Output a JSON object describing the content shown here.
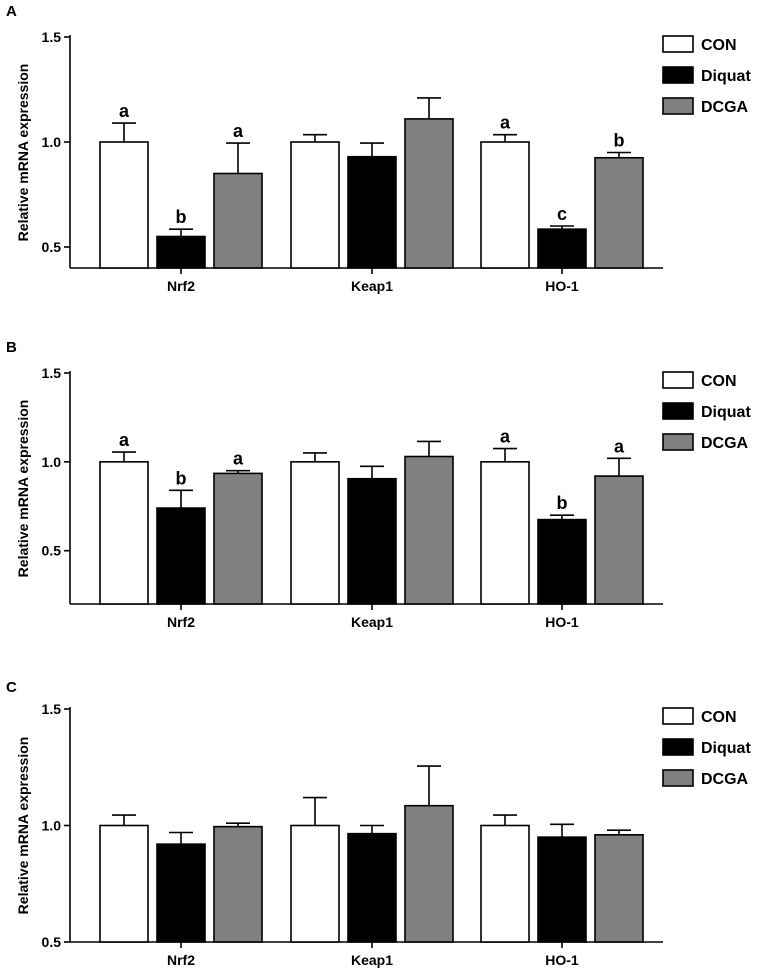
{
  "chart_data": [
    {
      "type": "bar",
      "panel_label": "A",
      "ylabel": "Relative mRNA expression",
      "xlabel": "",
      "ylim": [
        0.4,
        1.5
      ],
      "yticks": [
        0.5,
        1.0,
        1.5
      ],
      "ytick_labels": [
        "0.5",
        "1.0",
        "1.5"
      ],
      "categories": [
        "Nrf2",
        "Keap1",
        "HO-1"
      ],
      "legend": {
        "position": "top-right",
        "entries": [
          "CON",
          "Diquat",
          "DCGA"
        ]
      },
      "series": [
        {
          "name": "CON",
          "color": "#ffffff",
          "values": [
            1.0,
            1.0,
            1.0
          ],
          "errors": [
            0.09,
            0.035,
            0.035
          ],
          "labels": [
            "a",
            "",
            "a"
          ]
        },
        {
          "name": "Diquat",
          "color": "#000000",
          "values": [
            0.55,
            0.93,
            0.585
          ],
          "errors": [
            0.035,
            0.065,
            0.015
          ],
          "labels": [
            "b",
            "",
            "c"
          ]
        },
        {
          "name": "DCGA",
          "color": "#808080",
          "values": [
            0.85,
            1.11,
            0.925
          ],
          "errors": [
            0.145,
            0.1,
            0.025
          ],
          "labels": [
            "a",
            "",
            "b"
          ]
        }
      ]
    },
    {
      "type": "bar",
      "panel_label": "B",
      "ylabel": "Relative mRNA expression",
      "xlabel": "",
      "ylim": [
        0.2,
        1.5
      ],
      "yticks": [
        0.5,
        1.0,
        1.5
      ],
      "ytick_labels": [
        "0.5",
        "1.0",
        "1.5"
      ],
      "categories": [
        "Nrf2",
        "Keap1",
        "HO-1"
      ],
      "legend": {
        "position": "top-right",
        "entries": [
          "CON",
          "Diquat",
          "DCGA"
        ]
      },
      "series": [
        {
          "name": "CON",
          "color": "#ffffff",
          "values": [
            1.0,
            1.0,
            1.0
          ],
          "errors": [
            0.055,
            0.05,
            0.075
          ],
          "labels": [
            "a",
            "",
            "a"
          ]
        },
        {
          "name": "Diquat",
          "color": "#000000",
          "values": [
            0.74,
            0.905,
            0.675
          ],
          "errors": [
            0.1,
            0.07,
            0.025
          ],
          "labels": [
            "b",
            "",
            "b"
          ]
        },
        {
          "name": "DCGA",
          "color": "#808080",
          "values": [
            0.935,
            1.03,
            0.92
          ],
          "errors": [
            0.015,
            0.085,
            0.1
          ],
          "labels": [
            "a",
            "",
            "a"
          ]
        }
      ]
    },
    {
      "type": "bar",
      "panel_label": "C",
      "ylabel": "Relative mRNA expression",
      "xlabel": "",
      "ylim": [
        0.5,
        1.5
      ],
      "yticks": [
        0.5,
        1.0,
        1.5
      ],
      "ytick_labels": [
        "0.5",
        "1.0",
        "1.5"
      ],
      "categories": [
        "Nrf2",
        "Keap1",
        "HO-1"
      ],
      "legend": {
        "position": "top-right",
        "entries": [
          "CON",
          "Diquat",
          "DCGA"
        ]
      },
      "series": [
        {
          "name": "CON",
          "color": "#ffffff",
          "values": [
            1.0,
            1.0,
            1.0
          ],
          "errors": [
            0.045,
            0.12,
            0.045
          ],
          "labels": [
            "",
            "",
            ""
          ]
        },
        {
          "name": "Diquat",
          "color": "#000000",
          "values": [
            0.92,
            0.965,
            0.95
          ],
          "errors": [
            0.05,
            0.035,
            0.055
          ],
          "labels": [
            "",
            "",
            ""
          ]
        },
        {
          "name": "DCGA",
          "color": "#808080",
          "values": [
            0.995,
            1.085,
            0.96
          ],
          "errors": [
            0.015,
            0.17,
            0.02
          ],
          "labels": [
            "",
            "",
            ""
          ]
        }
      ]
    }
  ]
}
